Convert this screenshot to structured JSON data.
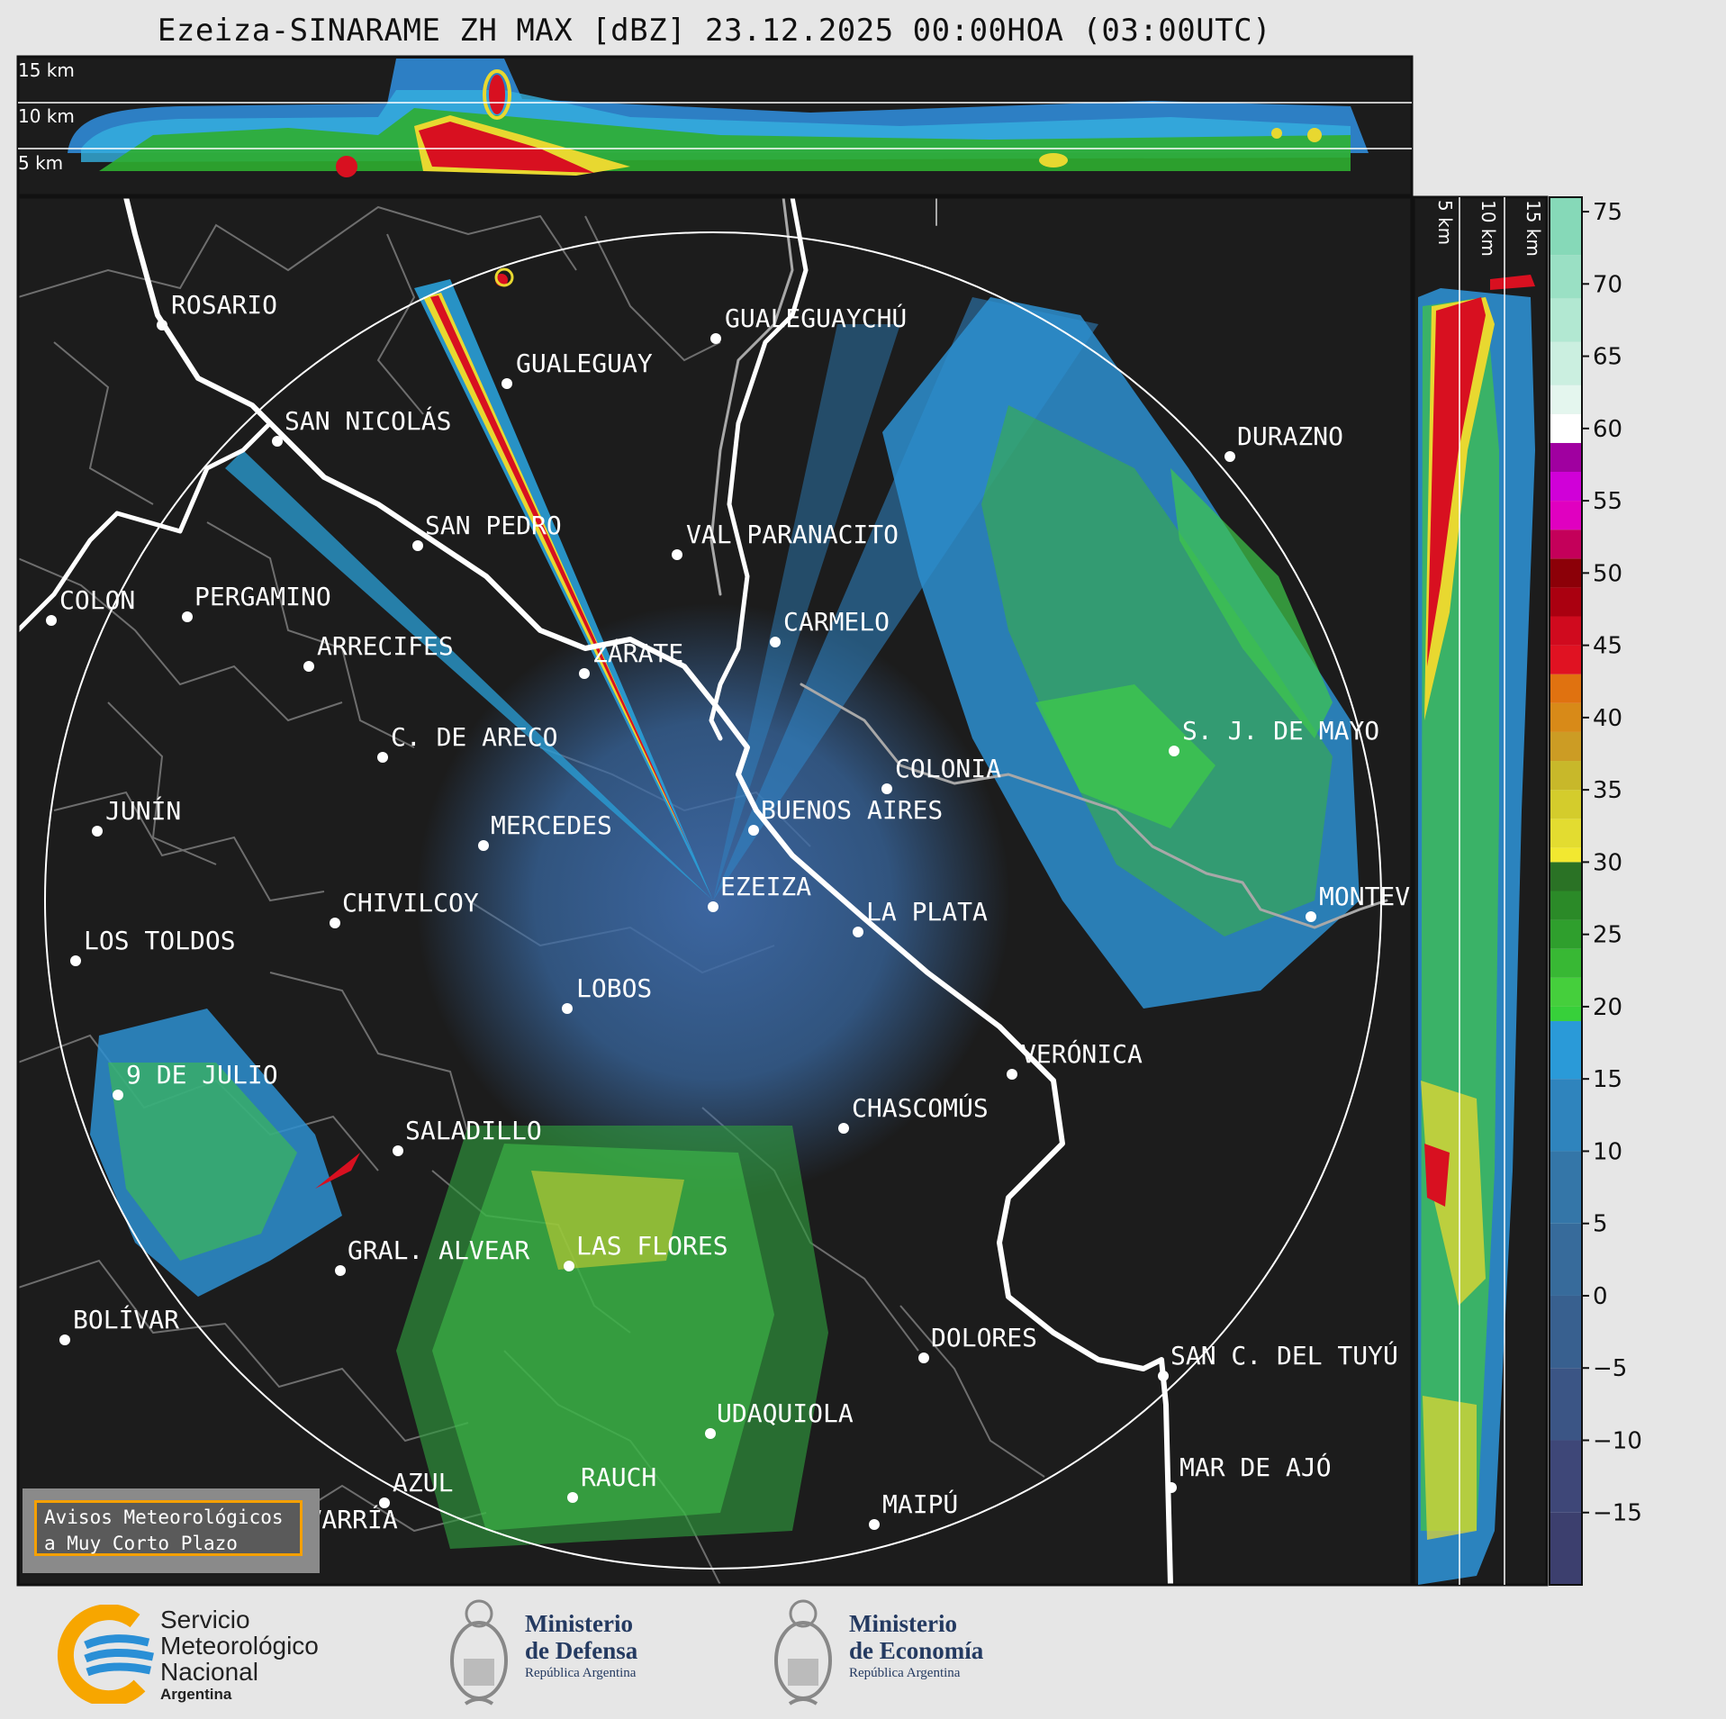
{
  "header": {
    "title": "Ezeiza-SINARAME ZH MAX [dBZ] 23.12.2025 00:00HOA (03:00UTC)"
  },
  "top_profile": {
    "altitude_labels": [
      "15 km",
      "10 km",
      "5 km"
    ]
  },
  "side_profile": {
    "altitude_labels": [
      "5 km",
      "10 km",
      "15 km"
    ]
  },
  "colorbar": {
    "ticks": [
      "75",
      "70",
      "65",
      "60",
      "55",
      "50",
      "45",
      "40",
      "35",
      "30",
      "25",
      "20",
      "15",
      "10",
      "5",
      "0",
      "−5",
      "−10",
      "−15"
    ],
    "range": [
      -20,
      76
    ],
    "unit": "dBZ"
  },
  "map": {
    "cities": [
      {
        "name": "ROSARIO"
      },
      {
        "name": "GUALEGUAYCHÚ"
      },
      {
        "name": "GUALEGUAY"
      },
      {
        "name": "SAN NICOLÁS"
      },
      {
        "name": "DURAZNO"
      },
      {
        "name": "SAN PEDRO"
      },
      {
        "name": "VAL PARANACITO"
      },
      {
        "name": "COLON"
      },
      {
        "name": "PERGAMINO"
      },
      {
        "name": "CARMELO"
      },
      {
        "name": "ARRECIFES"
      },
      {
        "name": "ZÁRATE"
      },
      {
        "name": "S. J. DE MAYO"
      },
      {
        "name": "C. DE ARECO"
      },
      {
        "name": "COLONIA"
      },
      {
        "name": "JUNÍN"
      },
      {
        "name": "BUENOS AIRES"
      },
      {
        "name": "MERCEDES"
      },
      {
        "name": "EZEIZA"
      },
      {
        "name": "MONTEVIDEO"
      },
      {
        "name": "CHIVILCOY"
      },
      {
        "name": "LA PLATA"
      },
      {
        "name": "LOS TOLDOS"
      },
      {
        "name": "LOBOS"
      },
      {
        "name": "VERÓNICA"
      },
      {
        "name": "9 DE JULIO"
      },
      {
        "name": "CHASCOMÚS"
      },
      {
        "name": "SALADILLO"
      },
      {
        "name": "GRAL. ALVEAR"
      },
      {
        "name": "LAS FLORES"
      },
      {
        "name": "BOLÍVAR"
      },
      {
        "name": "DOLORES"
      },
      {
        "name": "SAN C. DEL TUYÚ"
      },
      {
        "name": "UDAQUIOLA"
      },
      {
        "name": "MAR DE AJÓ"
      },
      {
        "name": "AZUL"
      },
      {
        "name": "RAUCH"
      },
      {
        "name": "OLAVARRÍA"
      },
      {
        "name": "MAIPÚ"
      }
    ]
  },
  "warning_box": {
    "line1": "Avisos Meteorológicos",
    "line2": "a Muy Corto Plazo"
  },
  "footer": {
    "smn": {
      "line1": "Servicio",
      "line2": "Meteorológico",
      "line3": "Nacional",
      "line4": "Argentina"
    },
    "defensa": {
      "line1": "Ministerio",
      "line2": "de Defensa",
      "line3": "República Argentina"
    },
    "economia": {
      "line1": "Ministerio",
      "line2": "de Economía",
      "line3": "República Argentina"
    }
  },
  "colors": {
    "background": "#e6e6e6",
    "map_bg": "#1c1c1c",
    "label": "#ffffff",
    "accent_orange": "#f5a000",
    "org_navy": "#243a61",
    "smn_blue": "#2a8fd6",
    "smn_orange": "#f7a600"
  }
}
